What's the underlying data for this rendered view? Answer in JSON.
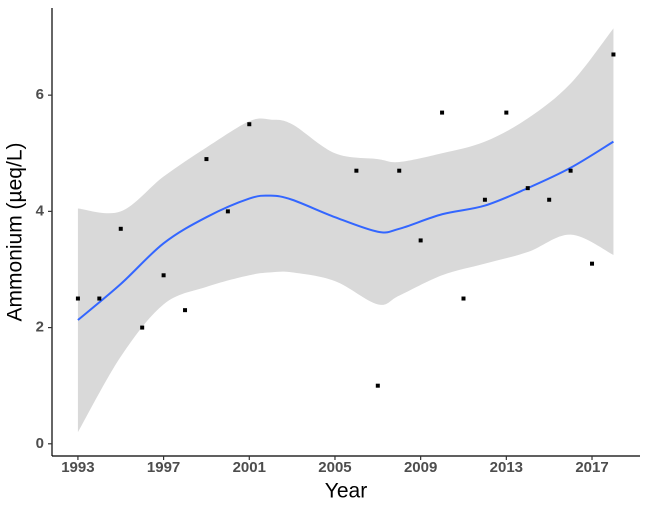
{
  "chart_data": {
    "type": "scatter",
    "x_label": "Year",
    "y_label": "Ammonium (µeq/L)",
    "x": [
      1993,
      1994,
      1995,
      1996,
      1997,
      1998,
      1999,
      2000,
      2001,
      2006,
      2007,
      2008,
      2009,
      2010,
      2011,
      2012,
      2013,
      2014,
      2015,
      2016,
      2017,
      2018
    ],
    "values": [
      2.5,
      2.5,
      3.7,
      2.0,
      2.9,
      2.3,
      4.9,
      4.0,
      5.5,
      4.7,
      1.0,
      4.7,
      3.5,
      5.7,
      2.5,
      4.2,
      5.7,
      4.4,
      4.2,
      4.7,
      3.1,
      6.7
    ],
    "color": "#000000",
    "fit": {
      "color": "#3366ff",
      "band_color": "#d9d9d9",
      "x": [
        1993,
        1995,
        1997,
        1999,
        2001,
        2002,
        2003,
        2005,
        2007,
        2008,
        2010,
        2012,
        2014,
        2016,
        2018
      ],
      "values": [
        2.13,
        2.75,
        3.45,
        3.9,
        4.22,
        4.27,
        4.2,
        3.9,
        3.65,
        3.7,
        3.95,
        4.1,
        4.4,
        4.75,
        5.2
      ],
      "upper": [
        4.05,
        4.0,
        4.6,
        5.1,
        5.55,
        5.58,
        5.5,
        5.0,
        4.9,
        4.85,
        5.0,
        5.2,
        5.6,
        6.2,
        7.15
      ],
      "lower": [
        0.2,
        1.5,
        2.4,
        2.7,
        2.9,
        2.95,
        2.95,
        2.8,
        2.4,
        2.55,
        2.9,
        3.1,
        3.3,
        3.6,
        3.25
      ]
    },
    "xlim": [
      1991.79,
      2019.24
    ],
    "ylim": [
      -0.21,
      7.5
    ],
    "xticks": [
      1993,
      1997,
      2001,
      2005,
      2009,
      2013,
      2017
    ],
    "yticks": [
      0,
      2,
      4,
      6
    ]
  }
}
